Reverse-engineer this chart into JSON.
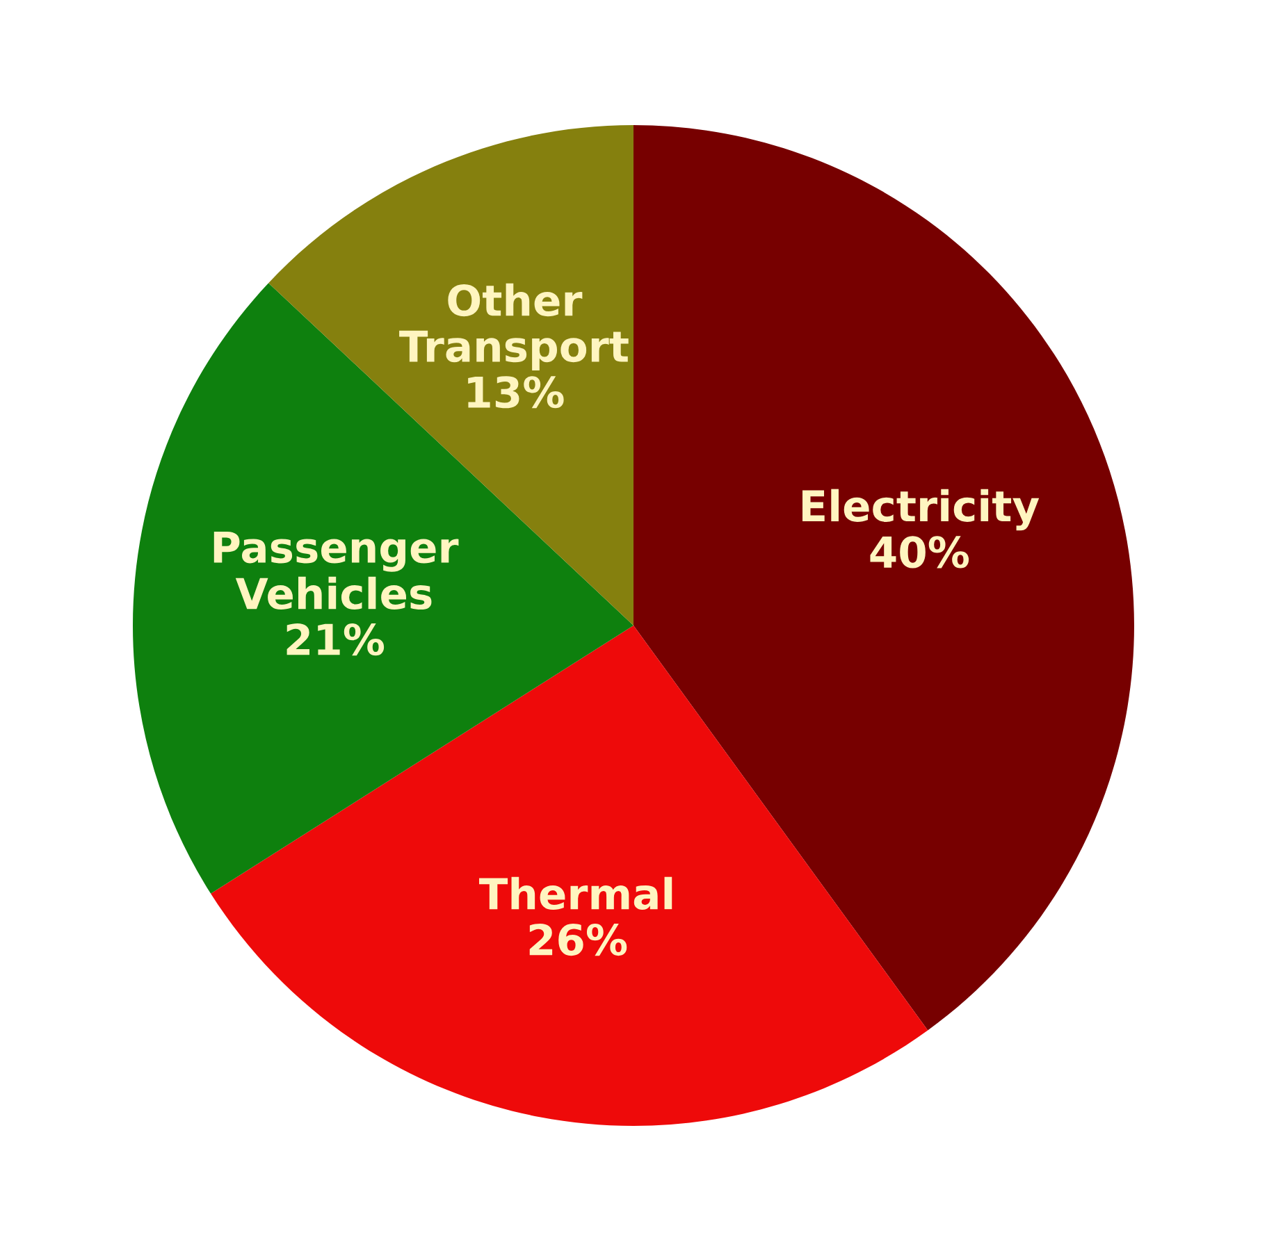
{
  "chart_data": {
    "type": "pie",
    "categories": [
      "Electricity",
      "Thermal",
      "Passenger\nVehicles",
      "Other\nTransport"
    ],
    "values": [
      40,
      26,
      21,
      13
    ],
    "colors": [
      "#770000",
      "#ee0a0a",
      "#0e800e",
      "#85800e"
    ],
    "value_labels": [
      "40%",
      "26%",
      "21%",
      "13%"
    ],
    "legend": false
  }
}
